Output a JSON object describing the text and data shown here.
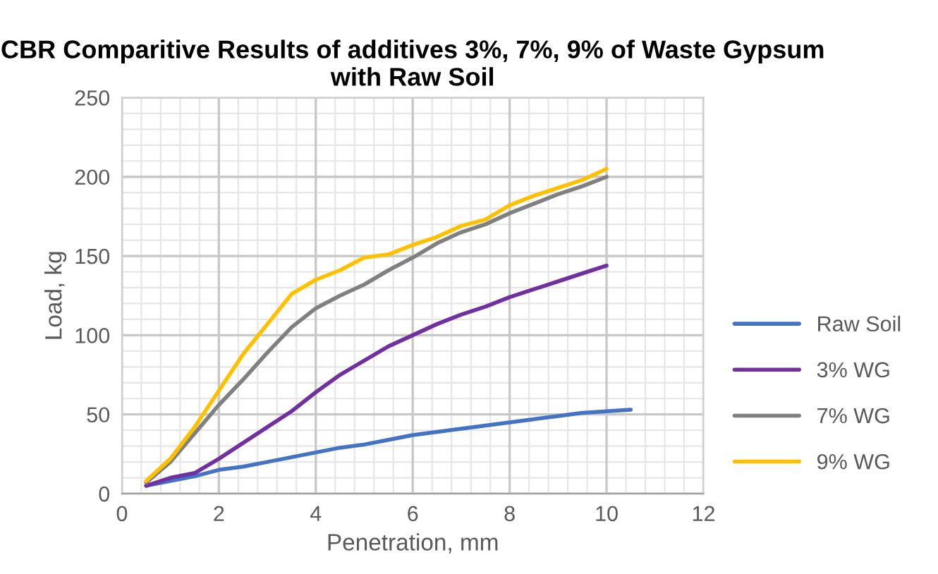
{
  "chart_data": {
    "type": "line",
    "title": "CBR Comparitive Results of additives 3%, 7%, 9% of Waste Gypsum with Raw Soil",
    "xlabel": "Penetration, mm",
    "ylabel": "Load, kg",
    "xlim": [
      0,
      12
    ],
    "xticks": [
      0,
      2,
      4,
      6,
      8,
      10,
      12
    ],
    "ylim": [
      0,
      250
    ],
    "yticks": [
      0,
      50,
      100,
      150,
      200,
      250
    ],
    "grid": true,
    "legend": "right",
    "marker": "none",
    "line_style": "solid",
    "series": [
      {
        "name": "Raw Soil",
        "color": "#4472c4",
        "x": [
          0.5,
          1,
          1.5,
          2,
          2.5,
          3,
          3.5,
          4,
          4.5,
          5,
          5.5,
          6,
          6.5,
          7,
          7.5,
          8,
          8.5,
          9,
          9.5,
          10,
          10.5
        ],
        "values": [
          5,
          8,
          11,
          15,
          17,
          20,
          23,
          26,
          29,
          31,
          34,
          37,
          39,
          41,
          43,
          45,
          47,
          49,
          51,
          52,
          53
        ]
      },
      {
        "name": "3% WG",
        "color": "#7030a0",
        "x": [
          0.5,
          1,
          1.5,
          2,
          2.5,
          3,
          3.5,
          4,
          4.5,
          5,
          5.5,
          6,
          6.5,
          7,
          7.5,
          8,
          8.5,
          9,
          9.5,
          10
        ],
        "values": [
          5,
          10,
          13,
          22,
          32,
          42,
          52,
          64,
          75,
          84,
          93,
          100,
          107,
          113,
          118,
          124,
          129,
          134,
          139,
          144
        ]
      },
      {
        "name": "7% WG",
        "color": "#808080",
        "x": [
          0.5,
          1,
          1.5,
          2,
          2.5,
          3,
          3.5,
          4,
          4.5,
          5,
          5.5,
          6,
          6.5,
          7,
          7.5,
          8,
          8.5,
          9,
          9.5,
          10
        ],
        "values": [
          7,
          20,
          38,
          56,
          72,
          89,
          105,
          117,
          125,
          132,
          141,
          149,
          158,
          165,
          170,
          177,
          183,
          189,
          194,
          200
        ]
      },
      {
        "name": "9% WG",
        "color": "#ffc000",
        "x": [
          0.5,
          1,
          1.5,
          2,
          2.5,
          3,
          3.5,
          4,
          4.5,
          5,
          5.5,
          6,
          6.5,
          7,
          7.5,
          8,
          8.5,
          9,
          9.5,
          10
        ],
        "values": [
          8,
          22,
          42,
          65,
          88,
          107,
          126,
          135,
          141,
          149,
          151,
          157,
          162,
          169,
          173,
          182,
          188,
          193,
          198,
          205
        ]
      }
    ]
  }
}
